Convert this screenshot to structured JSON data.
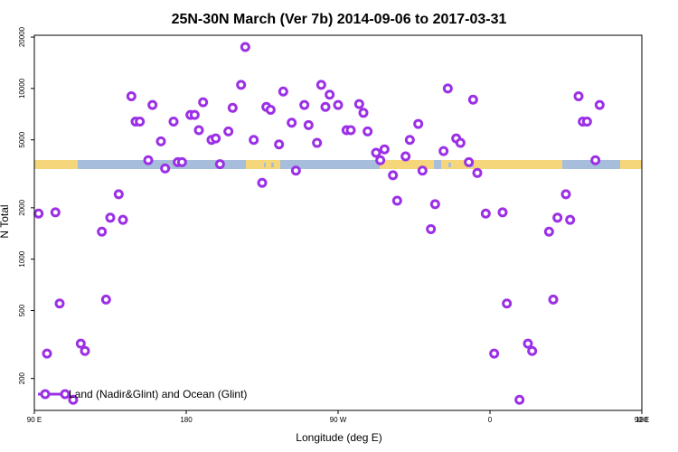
{
  "chart_data": {
    "type": "scatter",
    "title": "25N-30N March (Ver 7b)   2014-09-06 to 2017-03-31",
    "xlabel": "Longitude (deg E)",
    "ylabel": "N Total",
    "x_axis": {
      "range": [
        90,
        450
      ],
      "ticks": [
        {
          "value": 90,
          "label": "90 E"
        },
        {
          "value": 180,
          "label": "180"
        },
        {
          "value": 270,
          "label": "90 W"
        },
        {
          "value": 360,
          "label": "0"
        },
        {
          "value": 450,
          "label": "90 E"
        },
        {
          "value": 540,
          "label": "180"
        }
      ]
    },
    "y_axis": {
      "scale": "log",
      "range": [
        130,
        20500
      ],
      "ticks": [
        {
          "value": 200,
          "label": "200"
        },
        {
          "value": 500,
          "label": "500"
        },
        {
          "value": 1000,
          "label": "1000"
        },
        {
          "value": 2000,
          "label": "2000"
        },
        {
          "value": 5000,
          "label": "5000"
        },
        {
          "value": 10000,
          "label": "10000"
        },
        {
          "value": 20000,
          "label": "20000"
        }
      ]
    },
    "land_band_colors": {
      "land": "#f5d67a",
      "ocean": "#a6bddb"
    },
    "legend": {
      "position": "bottom-left"
    },
    "series": [
      {
        "name": "Land (Nadir&Glint) and Ocean (Glint)",
        "color": "#9b30e6",
        "points": [
          [
            92.5,
            1850
          ],
          [
            97.5,
            280
          ],
          [
            102.5,
            1880
          ],
          [
            105,
            550
          ],
          [
            113,
            150
          ],
          [
            117.5,
            320
          ],
          [
            120,
            290
          ],
          [
            130,
            1450
          ],
          [
            132.5,
            580
          ],
          [
            135,
            1750
          ],
          [
            140,
            2400
          ],
          [
            142.5,
            1700
          ],
          [
            147.5,
            9000
          ],
          [
            150,
            6400
          ],
          [
            152.5,
            6400
          ],
          [
            157.5,
            3800
          ],
          [
            160,
            8000
          ],
          [
            165,
            4900
          ],
          [
            167.5,
            3400
          ],
          [
            172.5,
            6400
          ],
          [
            175,
            3700
          ],
          [
            177.5,
            3700
          ],
          [
            182.5,
            7000
          ],
          [
            185,
            7000
          ],
          [
            187.5,
            5700
          ],
          [
            190,
            8300
          ],
          [
            195,
            5000
          ],
          [
            197.5,
            5100
          ],
          [
            200,
            3600
          ],
          [
            205,
            5600
          ],
          [
            207.5,
            7700
          ],
          [
            212.5,
            10500
          ],
          [
            215,
            17500
          ],
          [
            220,
            5000
          ],
          [
            225,
            2800
          ],
          [
            227.5,
            7800
          ],
          [
            230,
            7500
          ],
          [
            235,
            4700
          ],
          [
            237.5,
            9600
          ],
          [
            242.5,
            6300
          ],
          [
            245,
            3300
          ],
          [
            250,
            8000
          ],
          [
            252.5,
            6100
          ],
          [
            257.5,
            4800
          ],
          [
            260,
            10500
          ],
          [
            262.5,
            7800
          ],
          [
            265,
            9200
          ],
          [
            270,
            8000
          ],
          [
            275,
            5700
          ],
          [
            277.5,
            5700
          ],
          [
            282.5,
            8100
          ],
          [
            285,
            7200
          ],
          [
            287.5,
            5600
          ],
          [
            292.5,
            4200
          ],
          [
            295,
            3800
          ],
          [
            297.5,
            4400
          ],
          [
            302.5,
            3100
          ],
          [
            305,
            2200
          ],
          [
            310,
            4000
          ],
          [
            312.5,
            5000
          ],
          [
            317.5,
            6200
          ],
          [
            320,
            3300
          ],
          [
            325,
            1500
          ],
          [
            327.5,
            2100
          ],
          [
            332.5,
            4300
          ],
          [
            335,
            10000
          ],
          [
            340,
            5100
          ],
          [
            342.5,
            4800
          ],
          [
            347.5,
            3700
          ],
          [
            350,
            8600
          ],
          [
            352.5,
            3200
          ],
          [
            357.5,
            1850
          ],
          [
            362.5,
            280
          ],
          [
            367.5,
            1880
          ],
          [
            370,
            550
          ],
          [
            377.5,
            150
          ],
          [
            382.5,
            320
          ],
          [
            385,
            290
          ],
          [
            395,
            1450
          ],
          [
            397.5,
            580
          ],
          [
            400,
            1750
          ],
          [
            405,
            2400
          ],
          [
            407.5,
            1700
          ],
          [
            412.5,
            9000
          ],
          [
            415,
            6400
          ],
          [
            417.5,
            6400
          ],
          [
            422.5,
            3800
          ],
          [
            425,
            8000
          ]
        ]
      }
    ]
  }
}
